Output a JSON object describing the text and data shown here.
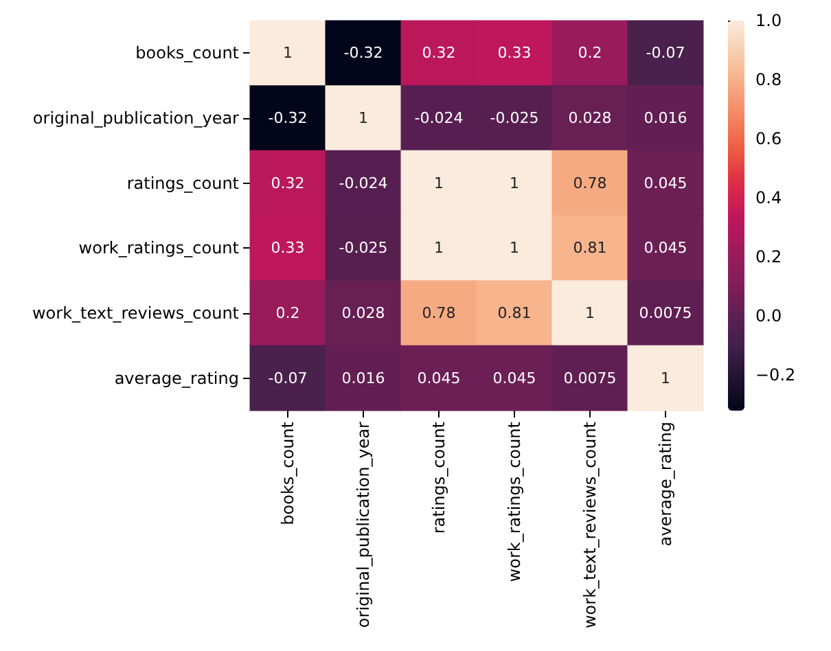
{
  "chart_data": {
    "type": "heatmap",
    "categories": [
      "books_count",
      "original_publication_year",
      "ratings_count",
      "work_ratings_count",
      "work_text_reviews_count",
      "average_rating"
    ],
    "y_categories": [
      "books_count",
      "original_publication_year",
      "ratings_count",
      "work_ratings_count",
      "work_text_reviews_count",
      "average_rating"
    ],
    "cells": [
      [
        1,
        -0.32,
        0.32,
        0.33,
        0.2,
        -0.07
      ],
      [
        -0.32,
        1,
        -0.024,
        -0.025,
        0.028,
        0.016
      ],
      [
        0.32,
        -0.024,
        1,
        1,
        0.78,
        0.045
      ],
      [
        0.33,
        -0.025,
        1,
        1,
        0.81,
        0.045
      ],
      [
        0.2,
        0.028,
        0.78,
        0.81,
        1,
        0.0075
      ],
      [
        -0.07,
        0.016,
        0.045,
        0.045,
        0.0075,
        1
      ]
    ],
    "data_labels": true,
    "clim": [
      -0.32,
      1
    ],
    "cticks": [
      {
        "value": -0.2,
        "label": "−0.2"
      },
      {
        "value": 0,
        "label": "0.0"
      },
      {
        "value": 0.2,
        "label": "0.2"
      },
      {
        "value": 0.4,
        "label": "0.4"
      },
      {
        "value": 0.6,
        "label": "0.6"
      },
      {
        "value": 0.8,
        "label": "0.8"
      },
      {
        "value": 1,
        "label": "1.0"
      }
    ]
  }
}
